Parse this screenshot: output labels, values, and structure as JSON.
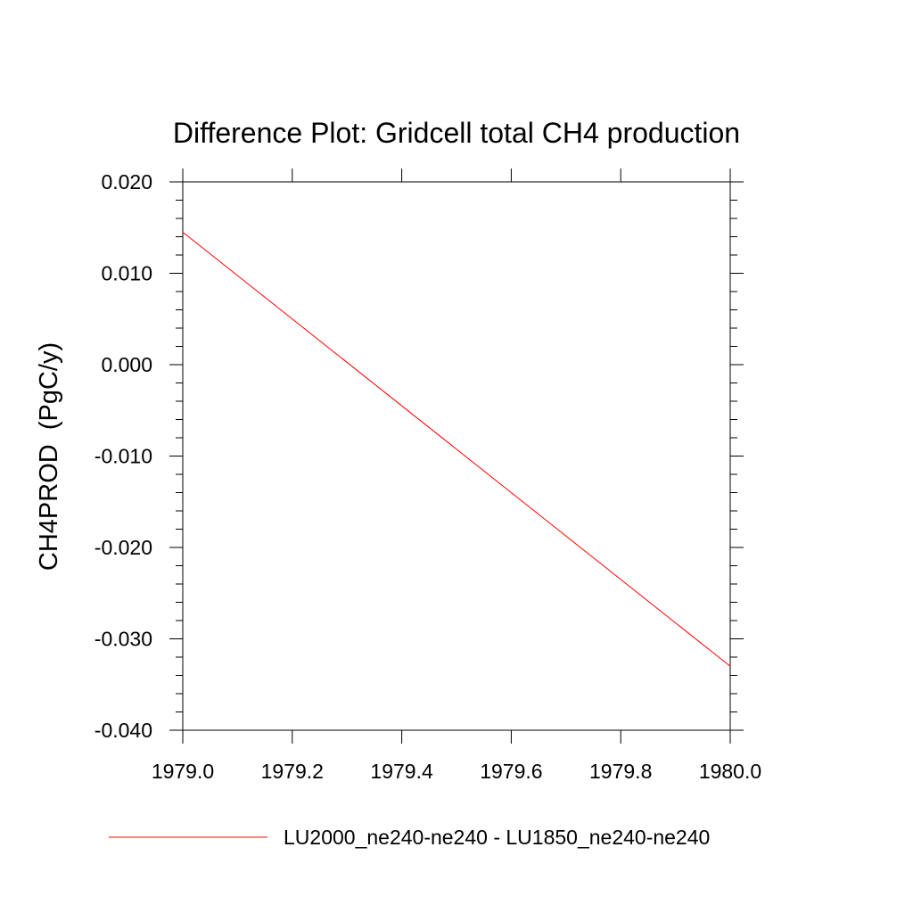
{
  "chart_data": {
    "type": "line",
    "title": "Difference Plot: Gridcell total CH4 production",
    "xlabel": "",
    "ylabel": "CH4PROD  (PgC/y)",
    "xlim": [
      1979.0,
      1980.0
    ],
    "ylim": [
      -0.04,
      0.02
    ],
    "x_ticks": [
      "1979.0",
      "1979.2",
      "1979.4",
      "1979.6",
      "1979.8",
      "1980.0"
    ],
    "y_ticks": [
      "0.020",
      "0.010",
      "0.000",
      "-0.010",
      "-0.020",
      "-0.030",
      "-0.040"
    ],
    "grid": false,
    "legend_position": "bottom",
    "series": [
      {
        "name": "LU2000_ne240-ne240 - LU1850_ne240-ne240",
        "color": "#ff0000",
        "x": [
          1979.0,
          1980.0
        ],
        "y": [
          0.0145,
          -0.033
        ]
      }
    ]
  }
}
